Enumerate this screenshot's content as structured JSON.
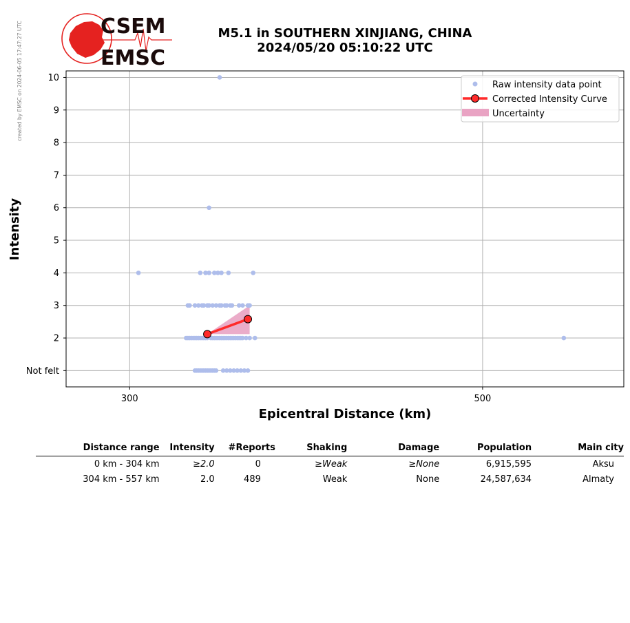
{
  "watermark": "created by EMSC on 2024-06-05 17:47:27 UTC",
  "logo": {
    "top": "CSEM",
    "bottom": "EMSC"
  },
  "title": {
    "line1": "M5.1 in SOUTHERN XINJIANG, CHINA",
    "line2": "2024/05/20 05:10:22 UTC"
  },
  "colors": {
    "raw": "#aebdeb",
    "curve": "#ff2a2a",
    "marker": "#ff2a2a",
    "uncertainty": "#e9a3c3",
    "grid": "#b0b0b0",
    "logo_red": "#e52220"
  },
  "chart_data": {
    "type": "scatter",
    "xlabel": "Epicentral Distance (km)",
    "ylabel": "Intensity",
    "xlim": [
      264,
      580
    ],
    "ylim": [
      0.5,
      10.2
    ],
    "x_ticks": [
      {
        "value": 300,
        "label": "300"
      },
      {
        "value": 500,
        "label": "500"
      }
    ],
    "y_ticks": [
      {
        "value": 1,
        "label": "Not felt"
      },
      {
        "value": 2,
        "label": "2"
      },
      {
        "value": 3,
        "label": "3"
      },
      {
        "value": 4,
        "label": "4"
      },
      {
        "value": 5,
        "label": "5"
      },
      {
        "value": 6,
        "label": "6"
      },
      {
        "value": 7,
        "label": "7"
      },
      {
        "value": 8,
        "label": "8"
      },
      {
        "value": 9,
        "label": "9"
      },
      {
        "value": 10,
        "label": "10"
      }
    ],
    "grid": true,
    "legend_position": "top-right",
    "legend": [
      {
        "key": "raw",
        "label": "Raw intensity data point"
      },
      {
        "key": "curve",
        "label": "Corrected Intensity Curve"
      },
      {
        "key": "uncertainty",
        "label": "Uncertainty"
      }
    ],
    "raw_points": [
      {
        "x": 351,
        "y": 10
      },
      {
        "x": 345,
        "y": 6
      },
      {
        "x": 305,
        "y": 4
      },
      {
        "x": 340,
        "y": 4
      },
      {
        "x": 343,
        "y": 4
      },
      {
        "x": 345,
        "y": 4
      },
      {
        "x": 348,
        "y": 4
      },
      {
        "x": 350,
        "y": 4
      },
      {
        "x": 352,
        "y": 4
      },
      {
        "x": 356,
        "y": 4
      },
      {
        "x": 370,
        "y": 4
      },
      {
        "x": 333,
        "y": 3
      },
      {
        "x": 334,
        "y": 3
      },
      {
        "x": 337,
        "y": 3
      },
      {
        "x": 339,
        "y": 3
      },
      {
        "x": 341,
        "y": 3
      },
      {
        "x": 342,
        "y": 3
      },
      {
        "x": 344,
        "y": 3
      },
      {
        "x": 345,
        "y": 3
      },
      {
        "x": 347,
        "y": 3
      },
      {
        "x": 349,
        "y": 3
      },
      {
        "x": 351,
        "y": 3
      },
      {
        "x": 352,
        "y": 3
      },
      {
        "x": 354,
        "y": 3
      },
      {
        "x": 355,
        "y": 3
      },
      {
        "x": 357,
        "y": 3
      },
      {
        "x": 358,
        "y": 3
      },
      {
        "x": 362,
        "y": 3
      },
      {
        "x": 364,
        "y": 3
      },
      {
        "x": 367,
        "y": 3
      },
      {
        "x": 368,
        "y": 3
      },
      {
        "x": 332,
        "y": 2
      },
      {
        "x": 333,
        "y": 2
      },
      {
        "x": 334,
        "y": 2
      },
      {
        "x": 335,
        "y": 2
      },
      {
        "x": 336,
        "y": 2
      },
      {
        "x": 337,
        "y": 2
      },
      {
        "x": 338,
        "y": 2
      },
      {
        "x": 339,
        "y": 2
      },
      {
        "x": 340,
        "y": 2
      },
      {
        "x": 341,
        "y": 2
      },
      {
        "x": 342,
        "y": 2
      },
      {
        "x": 343,
        "y": 2
      },
      {
        "x": 344,
        "y": 2
      },
      {
        "x": 346,
        "y": 2
      },
      {
        "x": 347,
        "y": 2
      },
      {
        "x": 348,
        "y": 2
      },
      {
        "x": 349,
        "y": 2
      },
      {
        "x": 350,
        "y": 2
      },
      {
        "x": 351,
        "y": 2
      },
      {
        "x": 352,
        "y": 2
      },
      {
        "x": 353,
        "y": 2
      },
      {
        "x": 354,
        "y": 2
      },
      {
        "x": 355,
        "y": 2
      },
      {
        "x": 356,
        "y": 2
      },
      {
        "x": 357,
        "y": 2
      },
      {
        "x": 358,
        "y": 2
      },
      {
        "x": 359,
        "y": 2
      },
      {
        "x": 360,
        "y": 2
      },
      {
        "x": 361,
        "y": 2
      },
      {
        "x": 362,
        "y": 2
      },
      {
        "x": 363,
        "y": 2
      },
      {
        "x": 364,
        "y": 2
      },
      {
        "x": 366,
        "y": 2
      },
      {
        "x": 368,
        "y": 2
      },
      {
        "x": 371,
        "y": 2
      },
      {
        "x": 546,
        "y": 2
      },
      {
        "x": 337,
        "y": 1
      },
      {
        "x": 338,
        "y": 1
      },
      {
        "x": 339,
        "y": 1
      },
      {
        "x": 340,
        "y": 1
      },
      {
        "x": 341,
        "y": 1
      },
      {
        "x": 342,
        "y": 1
      },
      {
        "x": 343,
        "y": 1
      },
      {
        "x": 344,
        "y": 1
      },
      {
        "x": 345,
        "y": 1
      },
      {
        "x": 346,
        "y": 1
      },
      {
        "x": 347,
        "y": 1
      },
      {
        "x": 348,
        "y": 1
      },
      {
        "x": 349,
        "y": 1
      },
      {
        "x": 353,
        "y": 1
      },
      {
        "x": 355,
        "y": 1
      },
      {
        "x": 357,
        "y": 1
      },
      {
        "x": 359,
        "y": 1
      },
      {
        "x": 361,
        "y": 1
      },
      {
        "x": 363,
        "y": 1
      },
      {
        "x": 365,
        "y": 1
      },
      {
        "x": 367,
        "y": 1
      }
    ],
    "corrected_curve": [
      {
        "x": 344,
        "y": 2.12
      },
      {
        "x": 367,
        "y": 2.58
      }
    ],
    "uncertainty_band": {
      "upper": [
        {
          "x": 344,
          "y": 2.12
        },
        {
          "x": 368,
          "y": 3.0
        }
      ],
      "lower": [
        {
          "x": 344,
          "y": 2.12
        },
        {
          "x": 368,
          "y": 2.12
        }
      ]
    }
  },
  "table": {
    "headers": [
      "Distance range",
      "Intensity",
      "#Reports",
      "Shaking",
      "Damage",
      "Population",
      "Main city"
    ],
    "rows": [
      {
        "distance": "0 km -  304 km",
        "intensity": "≥2.0",
        "reports": "0",
        "shaking": "≥Weak",
        "damage": "≥None",
        "population": "6,915,595",
        "city": "Aksu"
      },
      {
        "distance": "304 km -  557 km",
        "intensity": "2.0",
        "reports": "489",
        "shaking": "Weak",
        "damage": "None",
        "population": "24,587,634",
        "city": "Almaty"
      }
    ]
  }
}
